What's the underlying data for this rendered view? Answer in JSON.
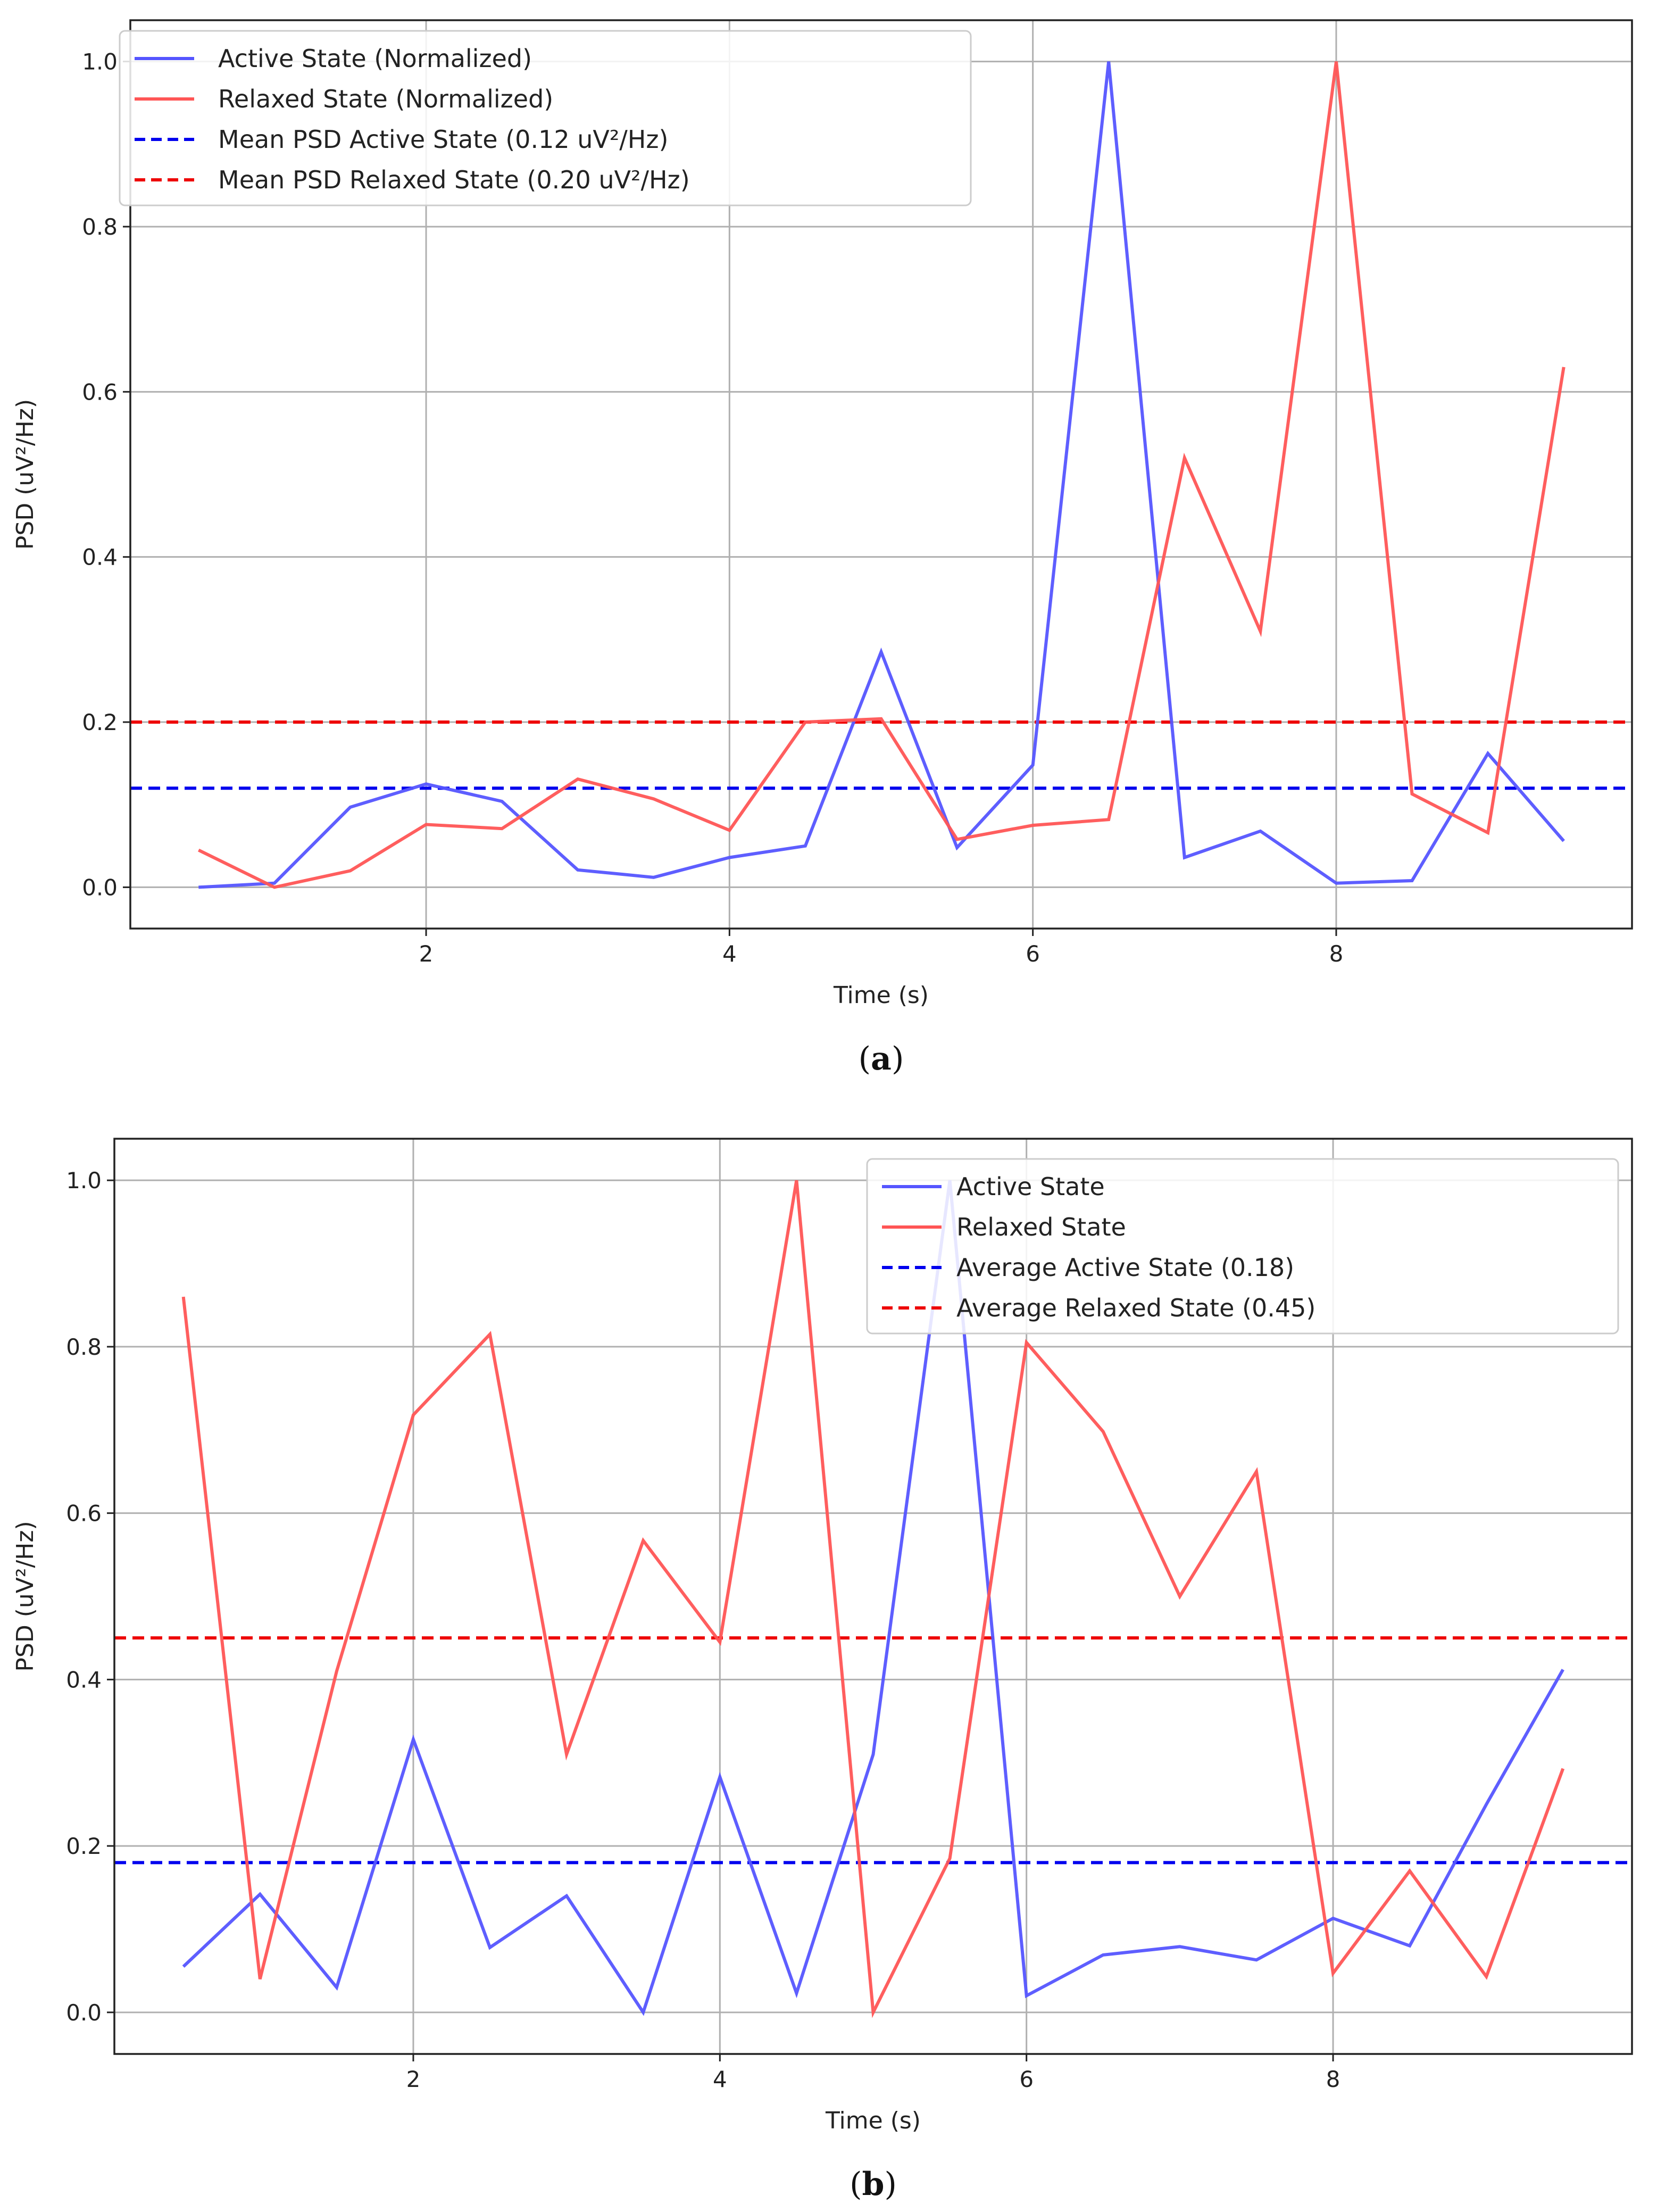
{
  "chart_data": [
    {
      "type": "line",
      "caption_letter": "a",
      "xlabel": "Time (s)",
      "ylabel": "PSD (uV²/Hz)",
      "xlim": [
        0.05,
        9.95
      ],
      "ylim": [
        -0.05,
        1.05
      ],
      "xticks": [
        2,
        4,
        6,
        8
      ],
      "yticks": [
        0.0,
        0.2,
        0.4,
        0.6,
        0.8,
        1.0
      ],
      "grid": true,
      "legend_position": "top-left",
      "x": [
        0.5,
        1.0,
        1.5,
        2.0,
        2.5,
        3.0,
        3.5,
        4.0,
        4.5,
        5.0,
        5.5,
        6.0,
        6.5,
        7.0,
        7.5,
        8.0,
        8.5,
        9.0,
        9.5
      ],
      "series": [
        {
          "name": "Active State (Normalized)",
          "color": "#5555ff",
          "style": "solid",
          "values": [
            0.0,
            0.005,
            0.097,
            0.125,
            0.104,
            0.021,
            0.012,
            0.036,
            0.05,
            0.285,
            0.048,
            0.148,
            1.0,
            0.036,
            0.068,
            0.005,
            0.008,
            0.162,
            0.056
          ]
        },
        {
          "name": "Relaxed State (Normalized)",
          "color": "#ff5555",
          "style": "solid",
          "values": [
            0.045,
            0.0,
            0.02,
            0.076,
            0.071,
            0.131,
            0.107,
            0.069,
            0.2,
            0.204,
            0.058,
            0.075,
            0.082,
            0.52,
            0.31,
            1.0,
            0.113,
            0.066,
            0.63
          ]
        }
      ],
      "reference_lines": [
        {
          "name": "Mean PSD Active State (0.12 uV²/Hz)",
          "color": "#0000ee",
          "value": 0.12
        },
        {
          "name": "Mean PSD Relaxed State (0.20 uV²/Hz)",
          "color": "#ee0000",
          "value": 0.2
        }
      ]
    },
    {
      "type": "line",
      "caption_letter": "b",
      "xlabel": "Time (s)",
      "ylabel": "PSD (uV²/Hz)",
      "xlim": [
        0.05,
        9.95
      ],
      "ylim": [
        -0.05,
        1.05
      ],
      "xticks": [
        2,
        4,
        6,
        8
      ],
      "yticks": [
        0.0,
        0.2,
        0.4,
        0.6,
        0.8,
        1.0
      ],
      "grid": true,
      "legend_position": "top-right",
      "x": [
        0.5,
        1.0,
        1.5,
        2.0,
        2.5,
        3.0,
        3.5,
        4.0,
        4.5,
        5.0,
        5.5,
        6.0,
        6.5,
        7.0,
        7.5,
        8.0,
        8.5,
        9.0,
        9.5
      ],
      "series": [
        {
          "name": "Active State",
          "color": "#5555ff",
          "style": "solid",
          "values": [
            0.055,
            0.142,
            0.03,
            0.328,
            0.078,
            0.14,
            0.0,
            0.283,
            0.023,
            0.31,
            1.0,
            0.02,
            0.069,
            0.079,
            0.063,
            0.113,
            0.08,
            0.25,
            0.412
          ]
        },
        {
          "name": "Relaxed State",
          "color": "#ff5555",
          "style": "solid",
          "values": [
            0.86,
            0.04,
            0.41,
            0.718,
            0.815,
            0.31,
            0.567,
            0.445,
            1.0,
            0.0,
            0.185,
            0.805,
            0.698,
            0.5,
            0.65,
            0.047,
            0.17,
            0.043,
            0.293
          ]
        }
      ],
      "reference_lines": [
        {
          "name": "Average Active State (0.18)",
          "color": "#0000ee",
          "value": 0.18
        },
        {
          "name": "Average Relaxed State (0.45)",
          "color": "#ee0000",
          "value": 0.45
        }
      ]
    }
  ]
}
